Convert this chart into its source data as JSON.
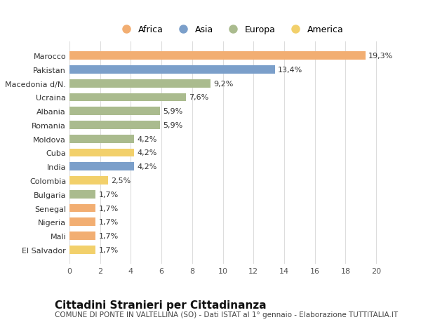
{
  "countries": [
    "El Salvador",
    "Mali",
    "Nigeria",
    "Senegal",
    "Bulgaria",
    "Colombia",
    "India",
    "Cuba",
    "Moldova",
    "Romania",
    "Albania",
    "Ucraina",
    "Macedonia d/N.",
    "Pakistan",
    "Marocco"
  ],
  "values": [
    1.7,
    1.7,
    1.7,
    1.7,
    1.7,
    2.5,
    4.2,
    4.2,
    4.2,
    5.9,
    5.9,
    7.6,
    9.2,
    13.4,
    19.3
  ],
  "labels": [
    "1,7%",
    "1,7%",
    "1,7%",
    "1,7%",
    "1,7%",
    "2,5%",
    "4,2%",
    "4,2%",
    "4,2%",
    "5,9%",
    "5,9%",
    "7,6%",
    "9,2%",
    "13,4%",
    "19,3%"
  ],
  "continents": [
    "America",
    "Africa",
    "Africa",
    "Africa",
    "Europa",
    "America",
    "Asia",
    "America",
    "Europa",
    "Europa",
    "Europa",
    "Europa",
    "Europa",
    "Asia",
    "Africa"
  ],
  "colors": {
    "Africa": "#F2AE72",
    "Asia": "#7B9FCA",
    "Europa": "#AABB8E",
    "America": "#F2D06B"
  },
  "legend_order": [
    "Africa",
    "Asia",
    "Europa",
    "America"
  ],
  "xlim": [
    0,
    21
  ],
  "xticks": [
    0,
    2,
    4,
    6,
    8,
    10,
    12,
    14,
    16,
    18,
    20
  ],
  "title": "Cittadini Stranieri per Cittadinanza",
  "subtitle": "COMUNE DI PONTE IN VALTELLINA (SO) - Dati ISTAT al 1° gennaio - Elaborazione TUTTITALIA.IT",
  "background_color": "#ffffff",
  "bar_height": 0.6,
  "label_fontsize": 8,
  "tick_fontsize": 8,
  "ytick_fontsize": 8,
  "title_fontsize": 11,
  "subtitle_fontsize": 7.5
}
